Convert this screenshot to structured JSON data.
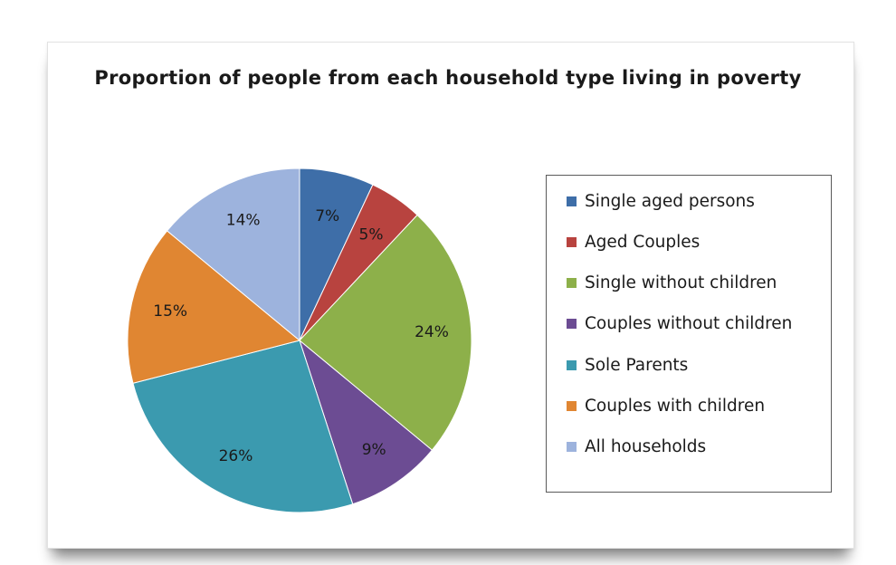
{
  "chart_data": {
    "type": "pie",
    "title": "Proportion of people from each household type living in poverty",
    "slices": [
      {
        "name": "Single aged persons",
        "value": 7,
        "label": "7%",
        "color": "#3e6ea8"
      },
      {
        "name": "Aged Couples",
        "value": 5,
        "label": "5%",
        "color": "#b8433f"
      },
      {
        "name": "Single without children",
        "value": 24,
        "label": "24%",
        "color": "#8db04a"
      },
      {
        "name": "Couples without children",
        "value": 9,
        "label": "9%",
        "color": "#6c4c93"
      },
      {
        "name": "Sole Parents",
        "value": 26,
        "label": "26%",
        "color": "#3b9aaf"
      },
      {
        "name": "Couples with children",
        "value": 15,
        "label": "15%",
        "color": "#e08632"
      },
      {
        "name": "All households",
        "value": 14,
        "label": "14%",
        "color": "#9db3dd"
      }
    ],
    "legend_position": "right"
  }
}
